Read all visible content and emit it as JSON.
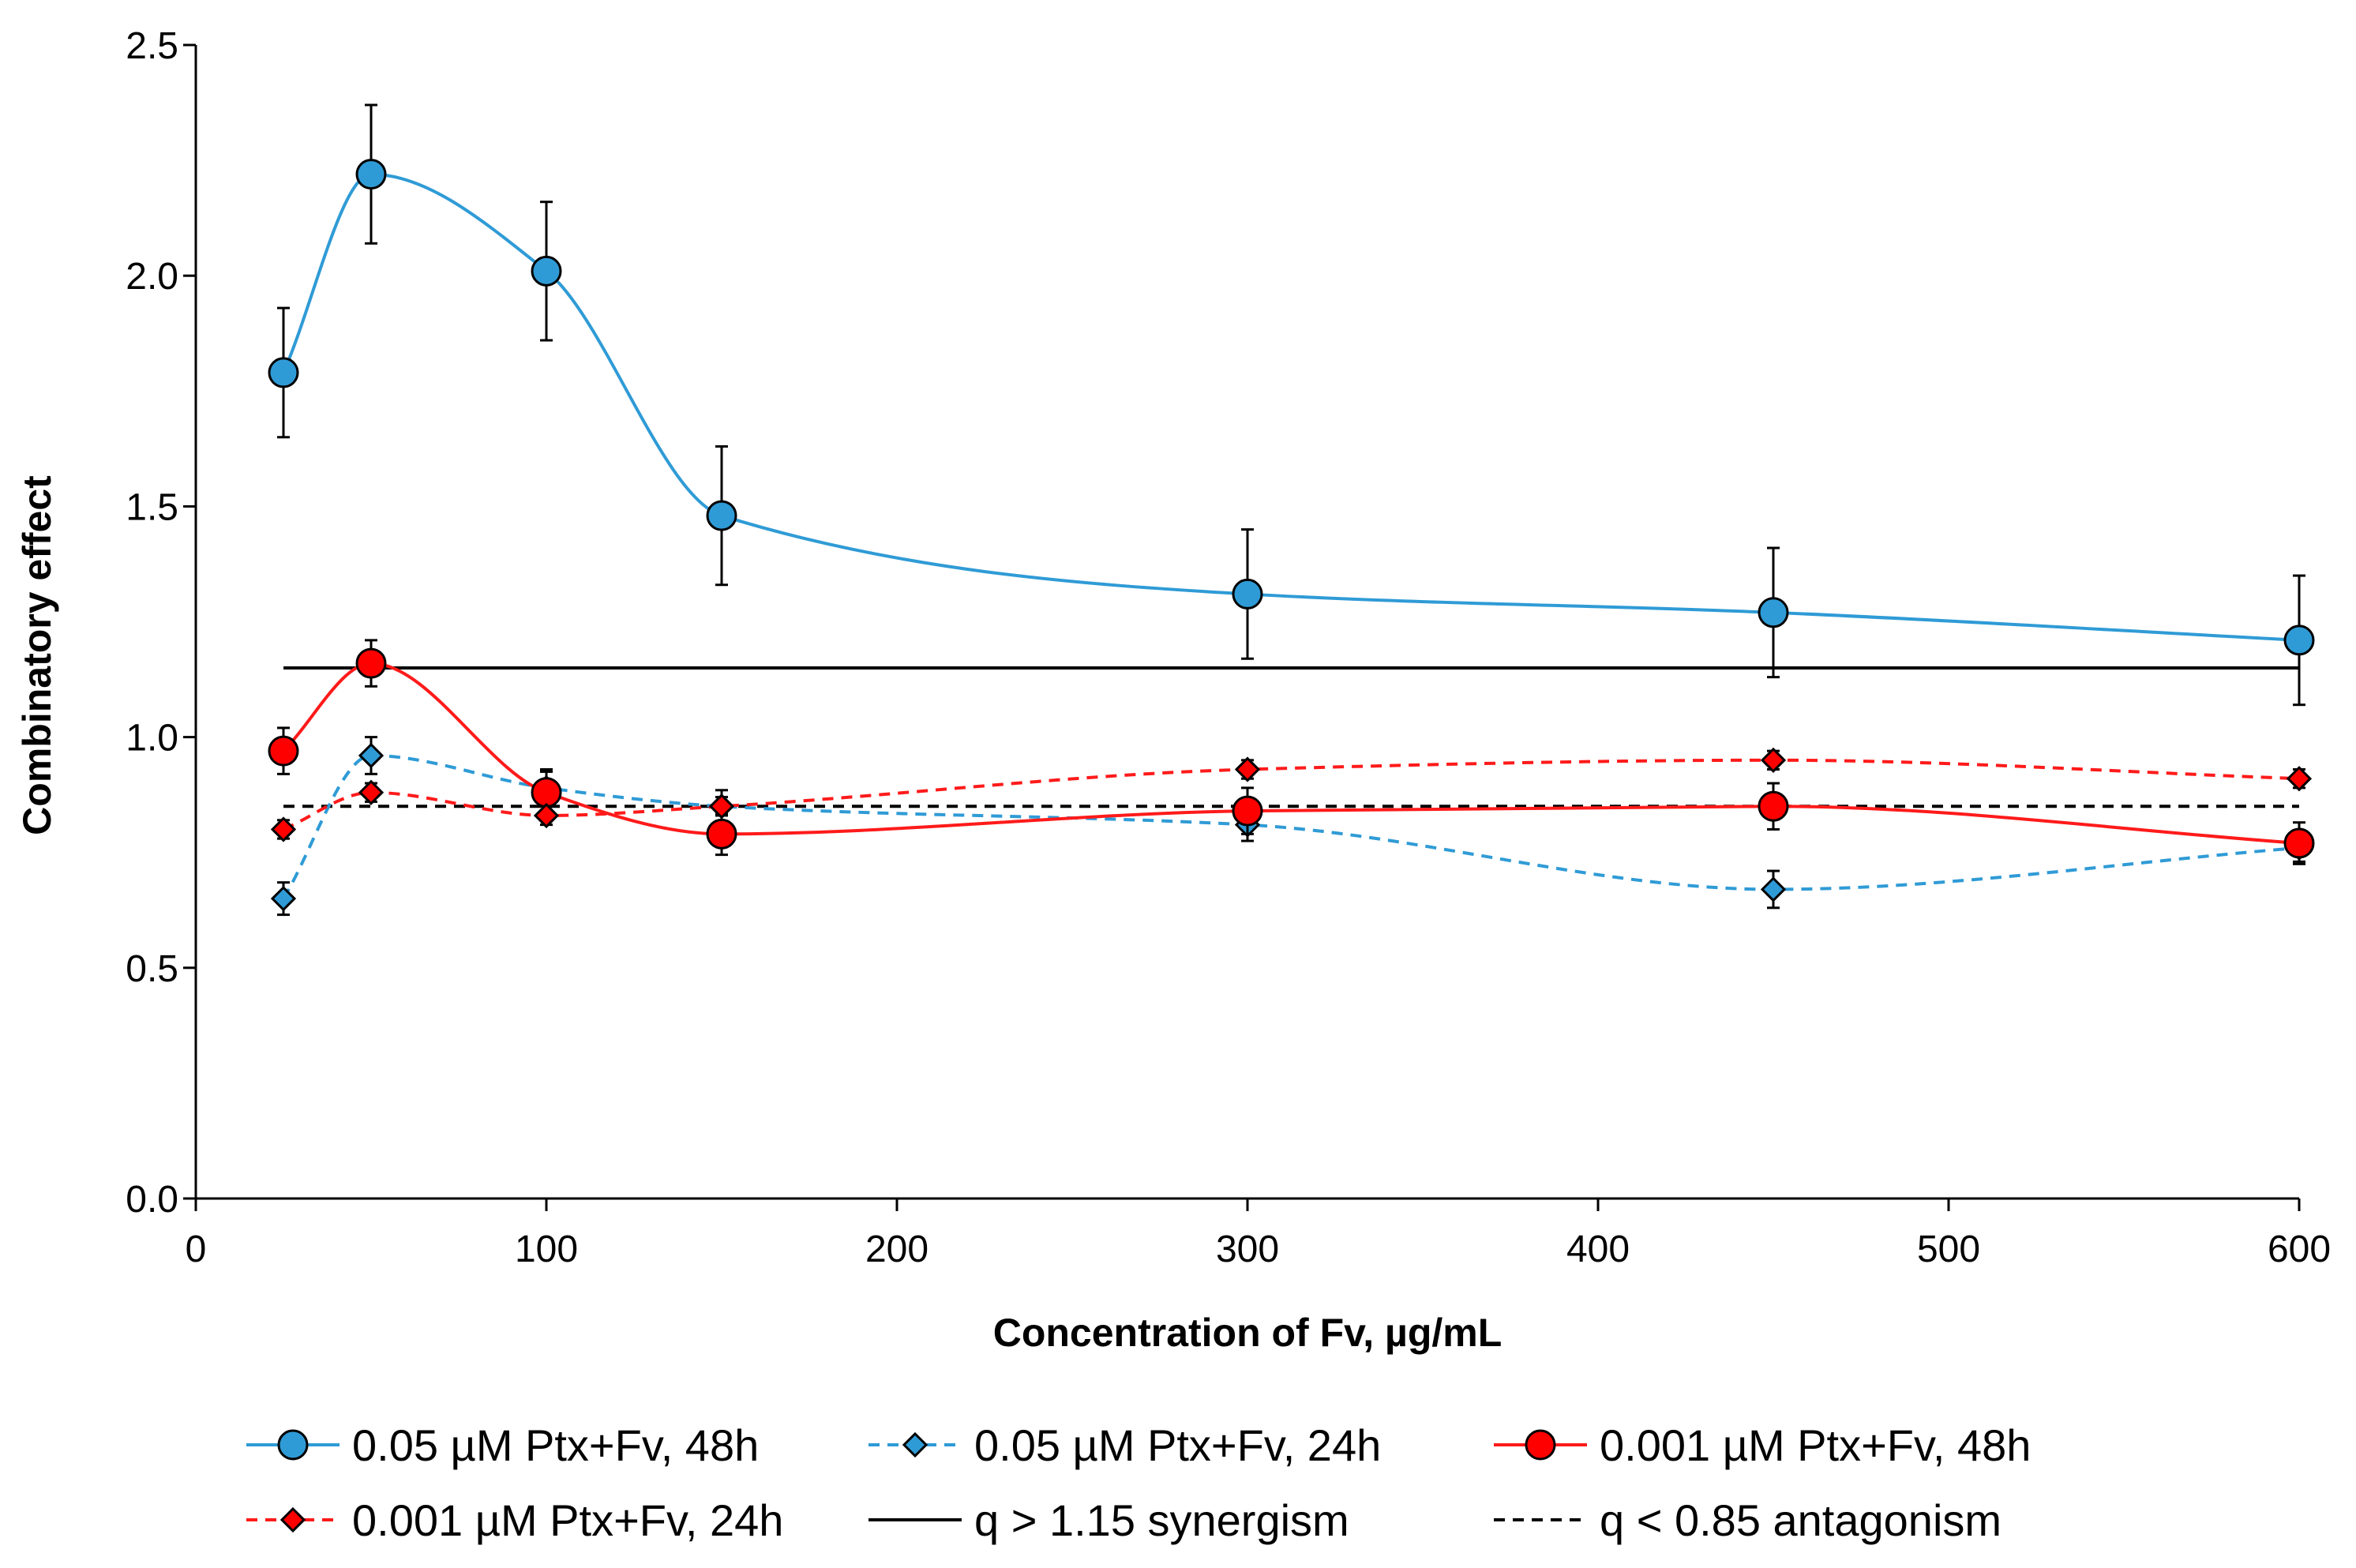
{
  "chart_data": {
    "type": "line",
    "title": "",
    "xlabel": "Concentration of Fv, µg/mL",
    "ylabel": "Combinatory effect",
    "xlim": [
      0,
      600
    ],
    "ylim": [
      0,
      2.5
    ],
    "x_ticks": [
      "0",
      "100",
      "200",
      "300",
      "400",
      "500",
      "600"
    ],
    "y_ticks": [
      "0.0",
      "0.5",
      "1.0",
      "1.5",
      "2.0",
      "2.5"
    ],
    "grid": false,
    "legend_position": "bottom",
    "x": [
      25,
      50,
      100,
      150,
      300,
      450,
      600
    ],
    "series": [
      {
        "name": "0.05 µM Ptx+Fv, 48h",
        "marker": "circle",
        "dashed": false,
        "color": "#2F9BD6",
        "fill": "#2F9BD6",
        "values": [
          1.79,
          2.22,
          2.01,
          1.48,
          1.31,
          1.27,
          1.21
        ],
        "errors": [
          0.14,
          0.15,
          0.15,
          0.15,
          0.14,
          0.14,
          0.14
        ]
      },
      {
        "name": "0.05 µM Ptx+Fv, 24h",
        "marker": "diamond",
        "dashed": true,
        "color": "#2F9BD6",
        "fill": "#2F9BD6",
        "values": [
          0.65,
          0.96,
          0.89,
          0.85,
          0.81,
          0.67,
          0.76
        ],
        "errors": [
          0.035,
          0.04,
          0.04,
          0.035,
          0.035,
          0.04,
          0.03
        ]
      },
      {
        "name": "0.001 µM Ptx+Fv, 48h",
        "marker": "circle",
        "dashed": false,
        "color": "#FF1A1A",
        "fill": "#FF0000",
        "values": [
          0.97,
          1.16,
          0.88,
          0.79,
          0.84,
          0.85,
          0.77
        ],
        "errors": [
          0.05,
          0.05,
          0.045,
          0.045,
          0.05,
          0.05,
          0.045
        ]
      },
      {
        "name": "0.001 µM Ptx+Fv, 24h",
        "marker": "diamond",
        "dashed": true,
        "color": "#FF1A1A",
        "fill": "#FF0000",
        "values": [
          0.8,
          0.88,
          0.83,
          0.85,
          0.93,
          0.95,
          0.91
        ],
        "errors": [
          0.02,
          0.02,
          0.02,
          0.02,
          0.02,
          0.02,
          0.02
        ]
      }
    ],
    "reference_lines": [
      {
        "name": "q > 1.15 synergism",
        "value": 1.15,
        "dashed": false,
        "color": "#000000"
      },
      {
        "name": "q < 0.85 antagonism",
        "value": 0.85,
        "dashed": true,
        "color": "#000000"
      }
    ]
  }
}
